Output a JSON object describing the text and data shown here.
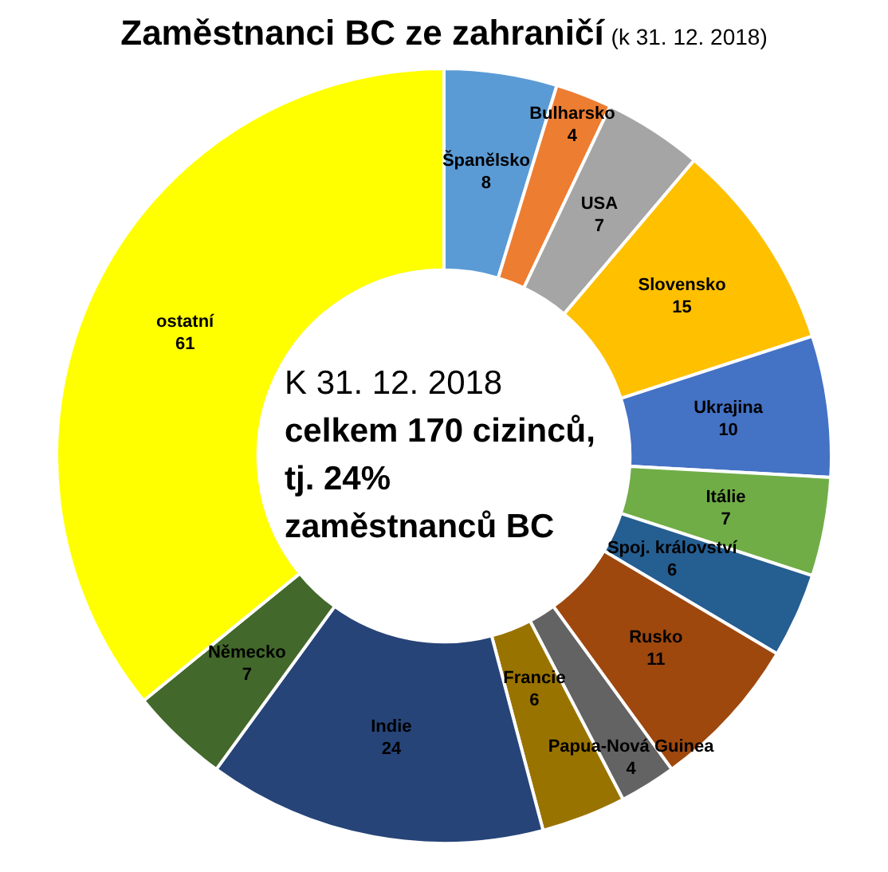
{
  "chart_data": {
    "type": "donut",
    "title": "Zaměstnanci BC ze zahraničí",
    "subtitle": "(k 31. 12. 2018)",
    "categories": [
      "Španělsko",
      "Bulharsko",
      "USA",
      "Slovensko",
      "Ukrajina",
      "Itálie",
      "Spoj. království",
      "Rusko",
      "Papua-Nová Guinea",
      "Francie",
      "Indie",
      "Německo",
      "ostatní"
    ],
    "values": [
      8,
      4,
      7,
      15,
      10,
      7,
      6,
      11,
      4,
      6,
      24,
      7,
      61
    ],
    "colors": [
      "#5b9bd5",
      "#ed7d31",
      "#a5a5a5",
      "#ffc000",
      "#4472c4",
      "#70ad47",
      "#255e91",
      "#9e480e",
      "#636363",
      "#997300",
      "#264478",
      "#43682b",
      "#ffff00"
    ],
    "data_labels": true,
    "annotations": [
      "K 31. 12. 2018",
      "celkem 170 cizinců,",
      "tj. 24%",
      "zaměstnanců BC"
    ]
  }
}
